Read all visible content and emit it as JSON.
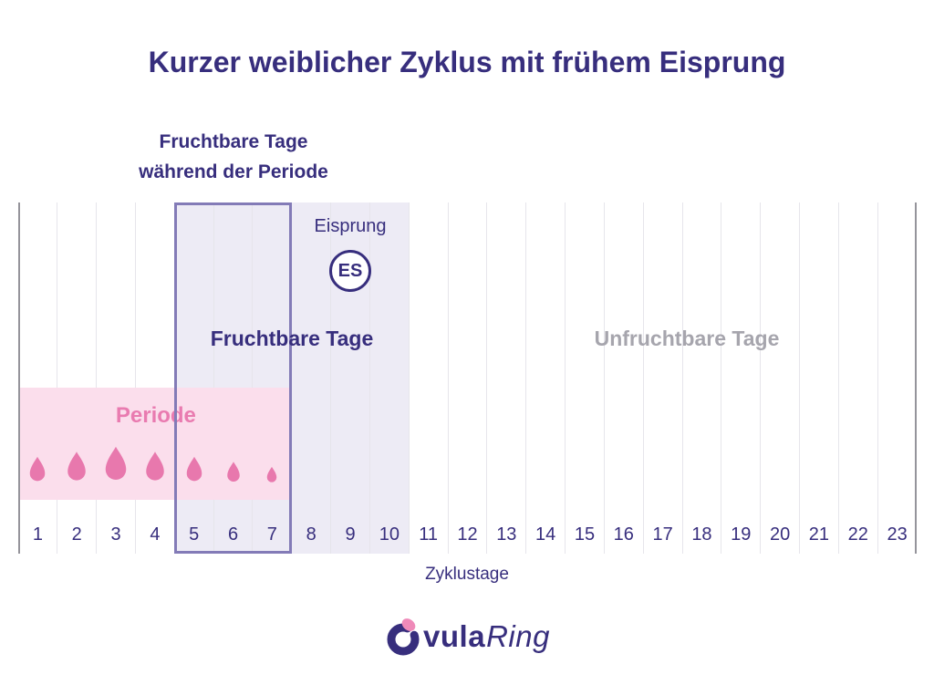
{
  "title": "Kurzer weiblicher Zyklus mit frühem Eisprung",
  "callout": {
    "line1": "Fruchtbare Tage",
    "line2": "während der Periode"
  },
  "labels": {
    "eisprung": "Eisprung",
    "es": "ES",
    "fruchtbare": "Fruchtbare Tage",
    "unfruchtbare": "Unfruchtbare Tage",
    "periode": "Periode"
  },
  "axis": {
    "xlabel": "Zyklustage",
    "days": [
      "1",
      "2",
      "3",
      "4",
      "5",
      "6",
      "7",
      "8",
      "9",
      "10",
      "11",
      "12",
      "13",
      "14",
      "15",
      "16",
      "17",
      "18",
      "19",
      "20",
      "21",
      "22",
      "23"
    ]
  },
  "chart_data": {
    "type": "area",
    "title": "Kurzer weiblicher Zyklus mit frühem Eisprung",
    "x": [
      1,
      2,
      3,
      4,
      5,
      6,
      7,
      8,
      9,
      10,
      11,
      12,
      13,
      14,
      15,
      16,
      17,
      18,
      19,
      20,
      21,
      22,
      23
    ],
    "xlabel": "Zyklustage",
    "grid": true,
    "legend_position": "none",
    "regions": [
      {
        "label": "Periode",
        "from_day": 1,
        "to_day": 7,
        "color": "#fbdeec"
      },
      {
        "label": "Fruchtbare Tage",
        "from_day": 5,
        "to_day": 10,
        "color": "#edebf5"
      },
      {
        "label": "Fruchtbare Tage während der Periode",
        "from_day": 5,
        "to_day": 7,
        "style": "outlined-box",
        "color": "#837bb7"
      },
      {
        "label": "Unfruchtbare Tage",
        "from_day": 11,
        "to_day": 23,
        "color": "#ffffff"
      }
    ],
    "ovulation": {
      "day": 9,
      "label": "Eisprung",
      "marker": "ES"
    },
    "period_flow_intensity": {
      "days": [
        1,
        2,
        3,
        4,
        5,
        6,
        7
      ],
      "values": [
        3,
        4,
        5,
        4,
        3,
        2,
        1
      ]
    }
  },
  "logo": {
    "text": "OvulaRing",
    "bold_part": "vula",
    "italic_part": "Ring"
  },
  "colors": {
    "accent_purple": "#372e7d",
    "box_border": "#837bb7",
    "fertile_fill": "#edebf5",
    "period_fill": "#fbdeec",
    "period_pink": "#e878ad",
    "infertile_gray": "#a6a5ad",
    "gridline": "#e6e5eb",
    "axis": "#95949b"
  }
}
